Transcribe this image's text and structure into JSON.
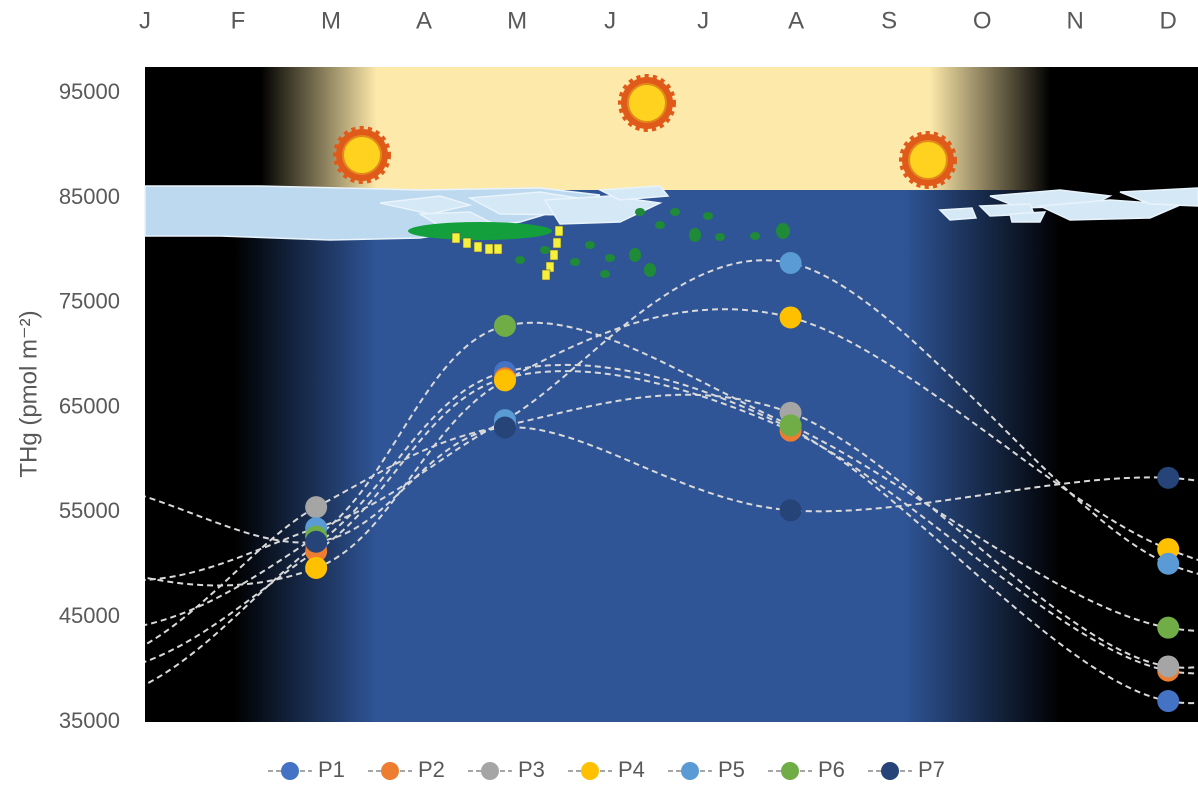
{
  "chart_data": {
    "type": "scatter",
    "y_label": "THg (pmol m⁻²)",
    "xlim": [
      0,
      11.32
    ],
    "xticks": [
      {
        "value": 0,
        "label": "J"
      },
      {
        "value": 1,
        "label": "F"
      },
      {
        "value": 2,
        "label": "M"
      },
      {
        "value": 3,
        "label": "A"
      },
      {
        "value": 4,
        "label": "M"
      },
      {
        "value": 5,
        "label": "J"
      },
      {
        "value": 6,
        "label": "J"
      },
      {
        "value": 7,
        "label": "A"
      },
      {
        "value": 8,
        "label": "S"
      },
      {
        "value": 9,
        "label": "O"
      },
      {
        "value": 10,
        "label": "N"
      },
      {
        "value": 11,
        "label": "D"
      }
    ],
    "ylim": [
      35000,
      97500
    ],
    "yticks": [
      35000,
      45000,
      55000,
      65000,
      75000,
      85000,
      95000
    ],
    "grid": false,
    "legend": "bottom",
    "x": [
      1.84,
      3.87,
      6.94,
      11.0
    ],
    "series": [
      {
        "name": "P1",
        "color": "#4472c4",
        "values": [
          51900,
          68400,
          63000,
          37000
        ]
      },
      {
        "name": "P2",
        "color": "#ed7d31",
        "values": [
          51300,
          67800,
          62800,
          39900
        ]
      },
      {
        "name": "P3",
        "color": "#a5a5a5",
        "values": [
          55500,
          63300,
          64500,
          40300
        ]
      },
      {
        "name": "P4",
        "color": "#ffc000",
        "values": [
          49700,
          67600,
          73600,
          51500
        ]
      },
      {
        "name": "P5",
        "color": "#5b9bd5",
        "values": [
          53500,
          63800,
          78800,
          50100
        ]
      },
      {
        "name": "P6",
        "color": "#70ad47",
        "values": [
          52700,
          72800,
          63300,
          44000
        ]
      },
      {
        "name": "P7",
        "color": "#264478",
        "values": [
          52200,
          63100,
          55200,
          58300
        ]
      }
    ]
  }
}
